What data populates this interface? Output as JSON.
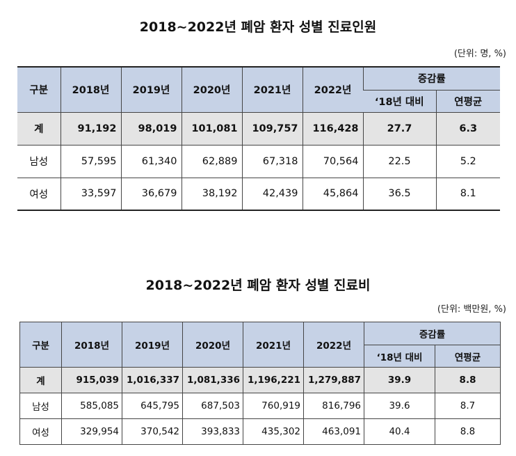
{
  "table1": {
    "title": "2018~2022년 폐암 환자 성별 진료인원",
    "unit": "(단위: 명, %)",
    "headers": {
      "category": "구분",
      "years": [
        "2018년",
        "2019년",
        "2020년",
        "2021년",
        "2022년"
      ],
      "change": "증감률",
      "vs2018": "‘18년 대비",
      "annual_avg": "연평균"
    },
    "rows": [
      {
        "label": "계",
        "values": [
          "91,192",
          "98,019",
          "101,081",
          "109,757",
          "116,428",
          "27.7",
          "6.3"
        ]
      },
      {
        "label": "남성",
        "values": [
          "57,595",
          "61,340",
          "62,889",
          "67,318",
          "70,564",
          "22.5",
          "5.2"
        ]
      },
      {
        "label": "여성",
        "values": [
          "33,597",
          "36,679",
          "38,192",
          "42,439",
          "45,864",
          "36.5",
          "8.1"
        ]
      }
    ]
  },
  "table2": {
    "title": "2018~2022년 폐암 환자 성별 진료비",
    "unit": "(단위: 백만원, %)",
    "headers": {
      "category": "구분",
      "years": [
        "2018년",
        "2019년",
        "2020년",
        "2021년",
        "2022년"
      ],
      "change": "증감률",
      "vs2018": "‘18년 대비",
      "annual_avg": "연평균"
    },
    "rows": [
      {
        "label": "계",
        "values": [
          "915,039",
          "1,016,337",
          "1,081,336",
          "1,196,221",
          "1,279,887",
          "39.9",
          "8.8"
        ]
      },
      {
        "label": "남성",
        "values": [
          "585,085",
          "645,795",
          "687,503",
          "760,919",
          "816,796",
          "39.6",
          "8.7"
        ]
      },
      {
        "label": "여성",
        "values": [
          "329,954",
          "370,542",
          "393,833",
          "435,302",
          "463,091",
          "40.4",
          "8.8"
        ]
      }
    ]
  }
}
